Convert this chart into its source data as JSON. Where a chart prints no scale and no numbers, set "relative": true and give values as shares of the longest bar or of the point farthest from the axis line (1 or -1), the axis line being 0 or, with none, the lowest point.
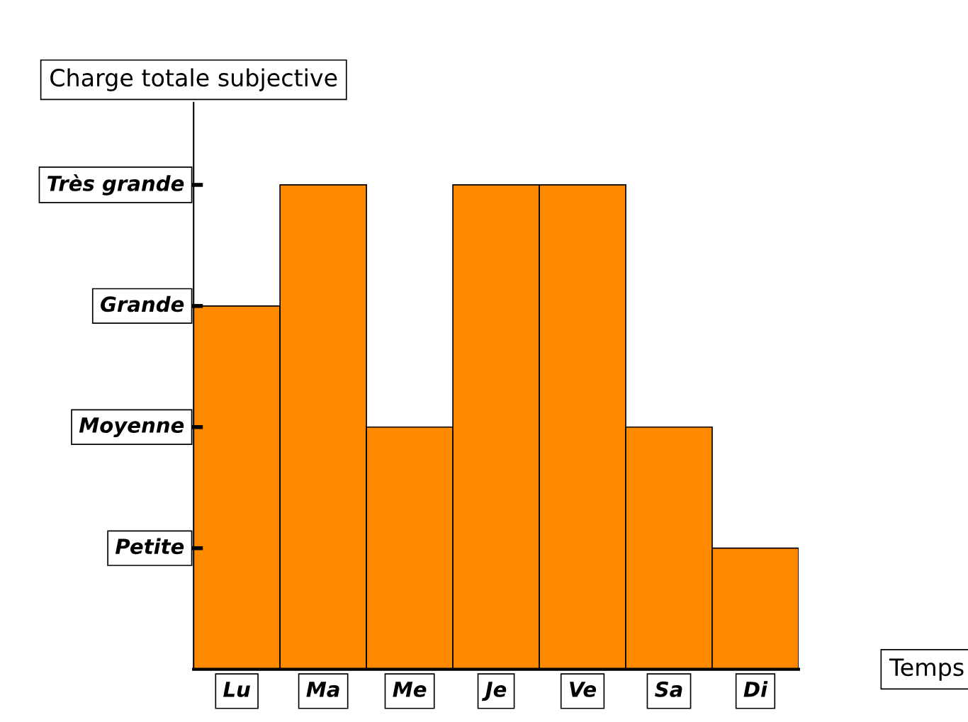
{
  "chart_data": {
    "type": "bar",
    "ylabel": "Charge totale subjective",
    "xlabel": "Temps",
    "categories": [
      "Lu",
      "Ma",
      "Me",
      "Je",
      "Ve",
      "Sa",
      "Di"
    ],
    "values": [
      0.75,
      1,
      0.5,
      1,
      1,
      0.5,
      0.25
    ],
    "relative": true,
    "color": "#ff8a00",
    "annotations": [
      "Petite",
      "Moyenne",
      "Grande",
      "Très grande"
    ],
    "grid": false
  }
}
